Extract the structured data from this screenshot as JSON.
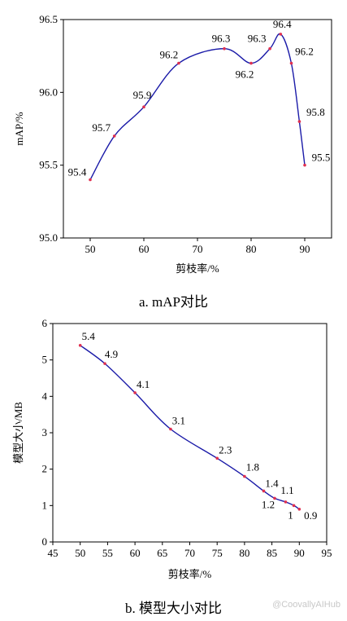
{
  "chart_data": [
    {
      "type": "line",
      "caption": "a. mAP对比",
      "xlabel": "剪枝率/%",
      "ylabel": "mAP/%",
      "xlim": [
        45,
        95
      ],
      "ylim": [
        95.0,
        96.5
      ],
      "xticks": [
        50,
        60,
        70,
        80,
        90
      ],
      "xtick_labels": [
        "50",
        "60",
        "70",
        "80",
        "90"
      ],
      "yticks": [
        95.0,
        95.5,
        96.0,
        96.5
      ],
      "ytick_labels": [
        "95.0",
        "95.5",
        "96.0",
        "96.5"
      ],
      "series": [
        {
          "x": [
            50,
            54.5,
            60,
            66.5,
            75,
            80,
            83.5,
            85.5,
            87.5,
            89,
            90
          ],
          "y": [
            95.4,
            95.7,
            95.9,
            96.2,
            96.3,
            96.2,
            96.3,
            96.4,
            96.2,
            95.8,
            95.5
          ],
          "labels": [
            "95.4",
            "95.7",
            "95.9",
            "96.2",
            "96.3",
            "96.2",
            "96.3",
            "96.4",
            "96.2",
            "95.8",
            "95.5"
          ],
          "color": "#1a1aa8",
          "marker_color": "#e03050"
        }
      ],
      "grid": false,
      "legend": "none"
    },
    {
      "type": "line",
      "caption": "b. 模型大小对比",
      "xlabel": "剪枝率/%",
      "ylabel": "模型大小/MB",
      "xlim": [
        45,
        95
      ],
      "ylim": [
        0,
        6
      ],
      "xticks": [
        45,
        50,
        55,
        60,
        65,
        70,
        75,
        80,
        85,
        90,
        95
      ],
      "xtick_labels": [
        "45",
        "50",
        "55",
        "60",
        "65",
        "70",
        "75",
        "80",
        "85",
        "90",
        "95"
      ],
      "yticks": [
        0,
        1,
        2,
        3,
        4,
        5,
        6
      ],
      "ytick_labels": [
        "0",
        "1",
        "2",
        "3",
        "4",
        "5",
        "6"
      ],
      "series": [
        {
          "x": [
            50,
            54.5,
            60,
            66.5,
            75,
            80,
            83.5,
            85.5,
            87.5,
            89,
            90
          ],
          "y": [
            5.4,
            4.9,
            4.1,
            3.1,
            2.3,
            1.8,
            1.4,
            1.2,
            1.1,
            1.0,
            0.9
          ],
          "labels": [
            "5.4",
            "4.9",
            "4.1",
            "3.1",
            "2.3",
            "1.8",
            "1.4",
            "1.2",
            "1.1",
            "1",
            "0.9"
          ],
          "color": "#1a1aa8",
          "marker_color": "#e03050"
        }
      ],
      "grid": false,
      "legend": "none"
    }
  ],
  "watermark": "@CoovallyAIHub"
}
